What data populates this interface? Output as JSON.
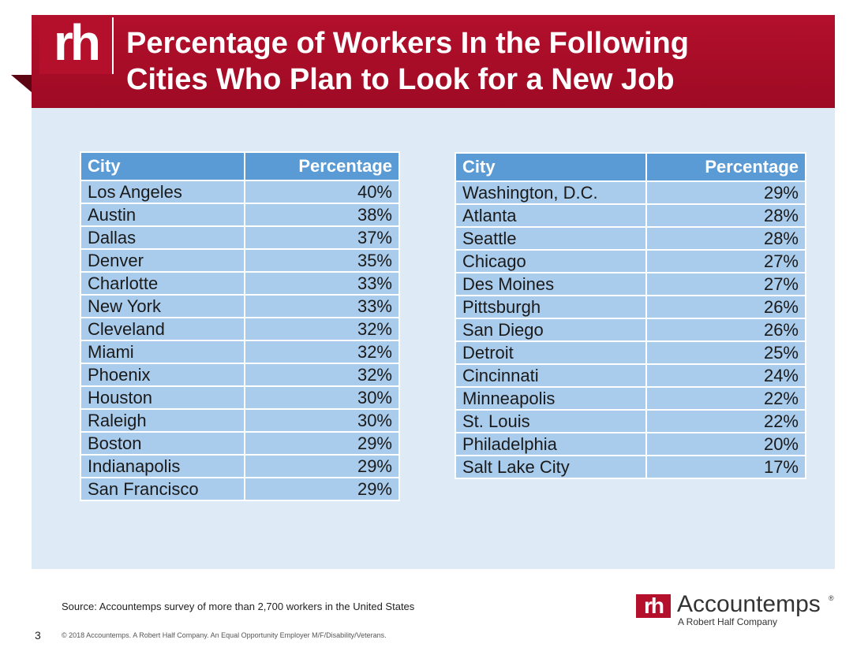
{
  "header": {
    "logo_text": "rh",
    "title_line1": "Percentage of Workers In the Following",
    "title_line2": "Cities Who Plan to Look for a New Job"
  },
  "columns": {
    "city": "City",
    "percentage": "Percentage"
  },
  "table_left": [
    {
      "city": "Los Angeles",
      "pct": "40%"
    },
    {
      "city": "Austin",
      "pct": "38%"
    },
    {
      "city": "Dallas",
      "pct": "37%"
    },
    {
      "city": "Denver",
      "pct": "35%"
    },
    {
      "city": "Charlotte",
      "pct": "33%"
    },
    {
      "city": "New York",
      "pct": "33%"
    },
    {
      "city": "Cleveland",
      "pct": "32%"
    },
    {
      "city": "Miami",
      "pct": "32%"
    },
    {
      "city": "Phoenix",
      "pct": "32%"
    },
    {
      "city": "Houston",
      "pct": "30%"
    },
    {
      "city": "Raleigh",
      "pct": "30%"
    },
    {
      "city": "Boston",
      "pct": "29%"
    },
    {
      "city": "Indianapolis",
      "pct": "29%"
    },
    {
      "city": "San Francisco",
      "pct": "29%"
    }
  ],
  "table_right": [
    {
      "city": "Washington, D.C.",
      "pct": "29%"
    },
    {
      "city": "Atlanta",
      "pct": "28%"
    },
    {
      "city": "Seattle",
      "pct": "28%"
    },
    {
      "city": "Chicago",
      "pct": "27%"
    },
    {
      "city": "Des Moines",
      "pct": "27%"
    },
    {
      "city": "Pittsburgh",
      "pct": "26%"
    },
    {
      "city": "San Diego",
      "pct": "26%"
    },
    {
      "city": "Detroit",
      "pct": "25%"
    },
    {
      "city": "Cincinnati",
      "pct": "24%"
    },
    {
      "city": "Minneapolis",
      "pct": "22%"
    },
    {
      "city": "St. Louis",
      "pct": "22%"
    },
    {
      "city": "Philadelphia",
      "pct": "20%"
    },
    {
      "city": "Salt Lake City",
      "pct": "17%"
    }
  ],
  "footer": {
    "source": "Source: Accountemps survey of more than 2,700 workers in the United States",
    "page_number": "3",
    "copyright": "© 2018 Accountemps. A Robert Half Company. An Equal Opportunity Employer M/F/Disability/Veterans."
  },
  "brand": {
    "mark": "rh",
    "name": "Accountemps",
    "tm": "®",
    "subtitle": "A Robert Half Company"
  },
  "colors": {
    "header_red": "#b3102c",
    "panel_blue": "#deeaf6",
    "table_header": "#5b9bd5",
    "table_cell": "#aaccec"
  }
}
